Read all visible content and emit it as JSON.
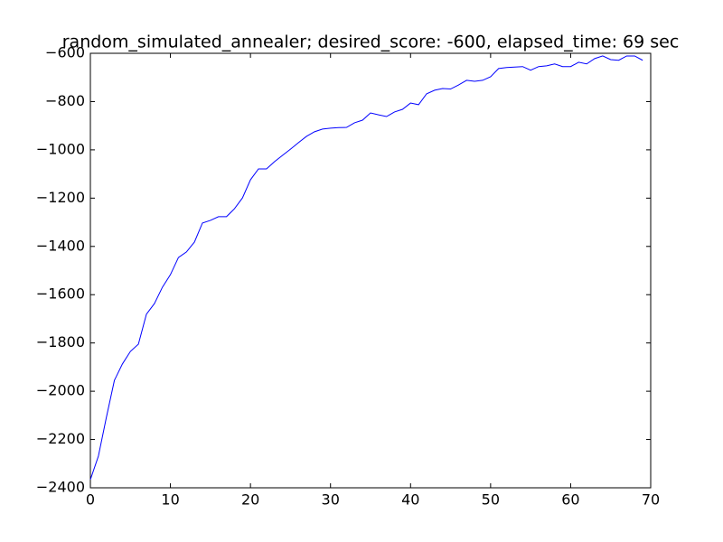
{
  "chart_data": {
    "type": "line",
    "title": "random_simulated_annealer; desired_score: -600, elapsed_time: 69 sec",
    "x": [
      0,
      1,
      2,
      3,
      4,
      5,
      6,
      7,
      8,
      9,
      10,
      11,
      12,
      13,
      14,
      15,
      16,
      17,
      18,
      19,
      20,
      21,
      22,
      23,
      24,
      25,
      26,
      27,
      28,
      29,
      30,
      31,
      32,
      33,
      34,
      35,
      36,
      37,
      38,
      39,
      40,
      41,
      42,
      43,
      44,
      45,
      46,
      47,
      48,
      49,
      50,
      51,
      52,
      53,
      54,
      55,
      56,
      57,
      58,
      59,
      60,
      61,
      62,
      63,
      64,
      65,
      66,
      67,
      68,
      69
    ],
    "series": [
      {
        "color": "#0000ff",
        "values": [
          -2366,
          -2269,
          -2108,
          -1955,
          -1887,
          -1835,
          -1805,
          -1681,
          -1637,
          -1569,
          -1517,
          -1446,
          -1423,
          -1382,
          -1303,
          -1292,
          -1277,
          -1277,
          -1244,
          -1199,
          -1124,
          -1079,
          -1079,
          -1049,
          -1023,
          -997,
          -970,
          -944,
          -925,
          -914,
          -910,
          -908,
          -907,
          -888,
          -877,
          -847,
          -855,
          -862,
          -843,
          -832,
          -806,
          -813,
          -768,
          -753,
          -746,
          -748,
          -731,
          -712,
          -716,
          -712,
          -697,
          -663,
          -659,
          -657,
          -655,
          -670,
          -655,
          -652,
          -644,
          -655,
          -655,
          -637,
          -644,
          -622,
          -611,
          -626,
          -629,
          -611,
          -611,
          -629
        ]
      }
    ],
    "xlim": [
      0,
      70
    ],
    "xticks": [
      0,
      10,
      20,
      30,
      40,
      50,
      60,
      70
    ],
    "ylim": [
      -2400,
      -600
    ],
    "yticks": [
      {
        "value": -2400,
        "label": "−2400"
      },
      {
        "value": -2200,
        "label": "−2200"
      },
      {
        "value": -2000,
        "label": "−2000"
      },
      {
        "value": -1800,
        "label": "−1800"
      },
      {
        "value": -1600,
        "label": "−1600"
      },
      {
        "value": -1400,
        "label": "−1400"
      },
      {
        "value": -1200,
        "label": "−1200"
      },
      {
        "value": -1000,
        "label": "−1000"
      },
      {
        "value": -800,
        "label": "−800"
      },
      {
        "value": -600,
        "label": "−600"
      }
    ]
  }
}
